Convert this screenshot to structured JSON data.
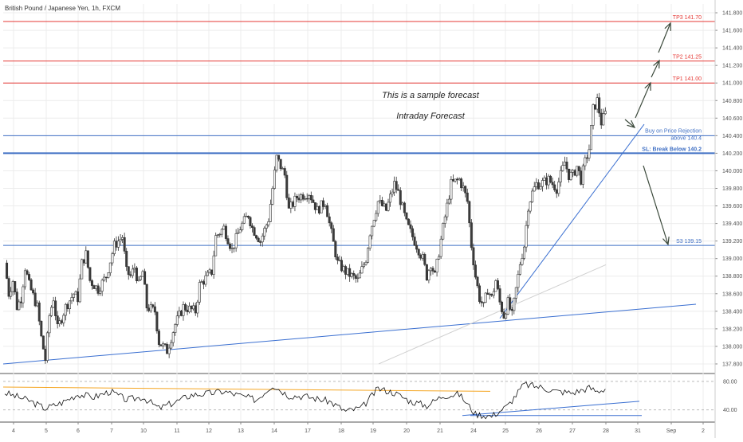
{
  "header": {
    "symbol_title": "British Pound / Japanese Yen, 1h, FXCM"
  },
  "annotations": {
    "line1": "This is a sample forecast",
    "line2": "Intraday Forecast"
  },
  "colors": {
    "resistance": "#e53935",
    "support": "#3f6fc4",
    "trendline": "#3a6fd1",
    "candle_up": "#ffffff",
    "candle_down": "#3b3b3b",
    "rsi_line": "#111111",
    "rsi_upper_trend": "#f5a623",
    "arrow": "#3c4a3c",
    "grid": "#ececec"
  },
  "chart_data": [
    {
      "type": "candlestick",
      "title": "British Pound / Japanese Yen, 1h, FXCM",
      "ylim": [
        137.7,
        141.9
      ],
      "y_ticks": [
        "141.800",
        "141.600",
        "141.400",
        "141.200",
        "141.000",
        "140.800",
        "140.600",
        "140.400",
        "140.200",
        "140.000",
        "139.800",
        "139.600",
        "139.400",
        "139.200",
        "139.000",
        "138.800",
        "138.600",
        "138.400",
        "138.200",
        "138.000",
        "137.800"
      ],
      "x_ticks": [
        "4",
        "5",
        "6",
        "7",
        "10",
        "11",
        "12",
        "13",
        "14",
        "17",
        "18",
        "19",
        "20",
        "21",
        "24",
        "25",
        "26",
        "27",
        "28",
        "31",
        "Sep",
        "2"
      ],
      "close_path": [
        [
          0,
          138.95
        ],
        [
          0.5,
          138.6
        ],
        [
          1.0,
          138.75
        ],
        [
          1.5,
          138.45
        ],
        [
          2.0,
          138.55
        ],
        [
          2.5,
          138.9
        ],
        [
          3.0,
          138.7
        ],
        [
          4.0,
          138.45
        ],
        [
          4.5,
          138.1
        ],
        [
          5.0,
          137.85
        ],
        [
          5.5,
          138.35
        ],
        [
          6.0,
          138.55
        ],
        [
          6.5,
          138.2
        ],
        [
          7.5,
          138.45
        ],
        [
          8.5,
          138.6
        ],
        [
          9.0,
          138.55
        ],
        [
          9.5,
          138.95
        ],
        [
          10.0,
          139.05
        ],
        [
          10.5,
          138.75
        ],
        [
          11.0,
          138.7
        ],
        [
          11.5,
          138.65
        ],
        [
          12.5,
          138.8
        ],
        [
          13.5,
          139.15
        ],
        [
          14.5,
          139.25
        ],
        [
          15.0,
          138.85
        ],
        [
          15.5,
          138.8
        ],
        [
          16.0,
          138.9
        ],
        [
          16.5,
          138.7
        ],
        [
          17.0,
          138.85
        ],
        [
          17.5,
          138.45
        ],
        [
          18.5,
          138.4
        ],
        [
          19.0,
          138.05
        ],
        [
          20.0,
          137.95
        ],
        [
          21.0,
          138.25
        ],
        [
          22.0,
          138.45
        ],
        [
          23.5,
          138.4
        ],
        [
          24.0,
          138.7
        ],
        [
          25.5,
          138.85
        ],
        [
          26.0,
          139.25
        ],
        [
          27.0,
          139.35
        ],
        [
          28.0,
          139.1
        ],
        [
          29.0,
          139.35
        ],
        [
          30.0,
          139.5
        ],
        [
          30.5,
          139.35
        ],
        [
          31.5,
          139.2
        ],
        [
          32.5,
          139.45
        ],
        [
          33.0,
          139.8
        ],
        [
          33.5,
          140.15
        ],
        [
          34.5,
          139.95
        ],
        [
          35.0,
          139.55
        ],
        [
          36.0,
          139.7
        ],
        [
          37.5,
          139.75
        ],
        [
          38.5,
          139.55
        ],
        [
          39.5,
          139.65
        ],
        [
          40.0,
          139.4
        ],
        [
          41.0,
          138.95
        ],
        [
          42.0,
          138.85
        ],
        [
          43.5,
          138.75
        ],
        [
          44.5,
          139.0
        ],
        [
          45.0,
          139.3
        ],
        [
          46.0,
          139.65
        ],
        [
          47.0,
          139.55
        ],
        [
          48.0,
          139.85
        ],
        [
          48.5,
          139.75
        ],
        [
          49.5,
          139.4
        ],
        [
          50.5,
          139.2
        ],
        [
          51.5,
          139.0
        ],
        [
          52.0,
          138.8
        ],
        [
          52.5,
          138.95
        ],
        [
          53.0,
          138.8
        ],
        [
          54.0,
          139.35
        ],
        [
          55.0,
          139.85
        ],
        [
          56.0,
          139.9
        ],
        [
          56.5,
          139.8
        ],
        [
          57.0,
          139.65
        ],
        [
          57.5,
          139.15
        ],
        [
          58.0,
          138.8
        ],
        [
          58.5,
          138.55
        ],
        [
          59.0,
          138.45
        ],
        [
          59.5,
          138.65
        ],
        [
          60.0,
          138.55
        ],
        [
          60.5,
          138.75
        ],
        [
          61.0,
          138.5
        ],
        [
          61.5,
          138.35
        ],
        [
          62.0,
          138.5
        ],
        [
          62.5,
          138.35
        ],
        [
          63.0,
          138.65
        ],
        [
          63.5,
          138.95
        ],
        [
          64.0,
          139.15
        ],
        [
          64.5,
          139.6
        ],
        [
          65.0,
          139.75
        ],
        [
          65.5,
          139.85
        ],
        [
          66.0,
          139.85
        ],
        [
          67.0,
          139.9
        ],
        [
          68.0,
          139.8
        ],
        [
          68.5,
          139.95
        ],
        [
          69.0,
          140.1
        ],
        [
          69.5,
          139.95
        ],
        [
          70.0,
          139.95
        ],
        [
          70.5,
          140.05
        ],
        [
          71.0,
          139.9
        ],
        [
          71.5,
          140.1
        ],
        [
          72.0,
          140.25
        ],
        [
          72.5,
          140.7
        ],
        [
          73.0,
          140.8
        ],
        [
          73.5,
          140.55
        ],
        [
          74.0,
          140.65
        ]
      ]
    },
    {
      "type": "line",
      "title": "",
      "ylim": [
        25,
        90
      ],
      "y_ticks": [
        "80.00",
        "40.00"
      ],
      "close_path": [
        [
          0,
          64
        ],
        [
          3,
          53
        ],
        [
          5,
          42
        ],
        [
          7,
          50
        ],
        [
          9,
          62
        ],
        [
          11,
          58
        ],
        [
          13,
          66
        ],
        [
          15,
          54
        ],
        [
          17,
          58
        ],
        [
          19,
          42
        ],
        [
          21,
          51
        ],
        [
          23,
          61
        ],
        [
          25,
          63
        ],
        [
          27,
          66
        ],
        [
          29,
          60
        ],
        [
          31,
          54
        ],
        [
          33,
          75
        ],
        [
          35,
          60
        ],
        [
          37,
          59
        ],
        [
          40,
          52
        ],
        [
          42,
          38
        ],
        [
          44,
          43
        ],
        [
          46,
          70
        ],
        [
          48,
          64
        ],
        [
          50,
          52
        ],
        [
          52,
          46
        ],
        [
          54,
          60
        ],
        [
          56,
          62
        ],
        [
          58,
          34
        ],
        [
          60,
          31
        ],
        [
          62,
          46
        ],
        [
          64,
          76
        ],
        [
          66,
          72
        ],
        [
          68,
          66
        ],
        [
          70,
          64
        ],
        [
          72,
          71
        ],
        [
          73,
          66
        ],
        [
          74,
          70
        ]
      ]
    }
  ],
  "levels": [
    {
      "label": "TP3 141.70",
      "price": 141.7,
      "kind": "resistance"
    },
    {
      "label": "TP2 141.25",
      "price": 141.25,
      "kind": "resistance"
    },
    {
      "label": "TP1 141.00",
      "price": 141.0,
      "kind": "resistance"
    },
    {
      "label_line1": "Buy on Price Rejection",
      "label_line2": "above 140.4",
      "price": 140.4,
      "kind": "support"
    },
    {
      "label": "SL: Break Below 140.2",
      "price": 140.2,
      "kind": "support_bold"
    },
    {
      "label": "S3 139.15",
      "price": 139.15,
      "kind": "support"
    }
  ],
  "rsi_levels": [
    "80.00",
    "40.00"
  ]
}
